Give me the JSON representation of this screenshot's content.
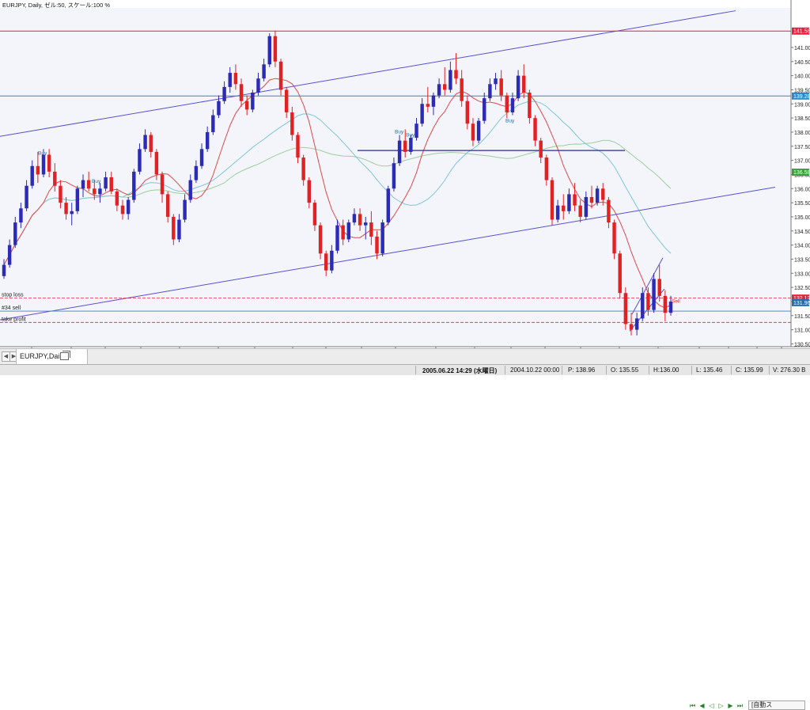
{
  "window": {
    "title": "EURJPY, Daily, ゼル:50, スケール:100 %"
  },
  "chart_data": {
    "type": "candlestick",
    "symbol": "EURJPY",
    "timeframe": "Daily",
    "ylim": [
      130.4,
      142.4
    ],
    "y_ticks": [
      "141.00",
      "140.50",
      "140.00",
      "139.50",
      "139.00",
      "138.50",
      "138.00",
      "137.50",
      "137.00",
      "136.50",
      "136.00",
      "135.50",
      "135.00",
      "134.50",
      "134.00",
      "133.50",
      "133.00",
      "132.50",
      "132.00",
      "131.50",
      "131.00",
      "130.50"
    ],
    "x_ticks": [
      "10",
      "18",
      "11",
      "16",
      "12",
      "17",
      "2005",
      "17",
      "2",
      "15",
      "3",
      "17",
      "4",
      "18",
      "5",
      "16",
      "6",
      "16",
      "7",
      "9",
      "17",
      "25"
    ],
    "price_lines": [
      {
        "label": "141.58",
        "value": 141.58,
        "color": "#e5223a"
      },
      {
        "label": "139.28",
        "value": 139.28,
        "color": "#2b88c9"
      },
      {
        "label": "136.58",
        "value": 136.58,
        "color": "#3a9f3a"
      },
      {
        "label": "132.12",
        "value": 132.12,
        "color": "#e5223a"
      },
      {
        "label": "131.96",
        "value": 131.96,
        "color": "#1e6fb3"
      }
    ],
    "horizontal_lines": [
      {
        "name": "stop loss",
        "value": 132.12,
        "style": "dashed",
        "color": "#e5223a"
      },
      {
        "name": "#34 sell",
        "value": 131.66,
        "style": "solid",
        "color": "#2b88c9"
      },
      {
        "name": "take profit",
        "value": 131.26,
        "style": "dashed",
        "color": "#e5223a"
      }
    ],
    "trade_labels": [
      "Buy",
      "Buy",
      "Buy",
      "Buy",
      "Buy",
      "Sell"
    ],
    "candles": [
      {
        "o": 132.9,
        "h": 133.5,
        "l": 132.8,
        "c": 133.3
      },
      {
        "o": 133.3,
        "h": 134.2,
        "l": 133.2,
        "c": 134.0
      },
      {
        "o": 134.0,
        "h": 135.0,
        "l": 133.9,
        "c": 134.8
      },
      {
        "o": 134.8,
        "h": 135.5,
        "l": 134.6,
        "c": 135.3
      },
      {
        "o": 135.3,
        "h": 136.3,
        "l": 135.2,
        "c": 136.1
      },
      {
        "o": 136.1,
        "h": 137.0,
        "l": 136.0,
        "c": 136.8
      },
      {
        "o": 136.8,
        "h": 137.3,
        "l": 136.2,
        "c": 136.5
      },
      {
        "o": 136.5,
        "h": 137.4,
        "l": 136.4,
        "c": 137.2
      },
      {
        "o": 137.2,
        "h": 137.4,
        "l": 136.4,
        "c": 136.6
      },
      {
        "o": 136.6,
        "h": 136.9,
        "l": 135.9,
        "c": 136.1
      },
      {
        "o": 136.1,
        "h": 136.3,
        "l": 135.3,
        "c": 135.5
      },
      {
        "o": 135.5,
        "h": 135.7,
        "l": 134.9,
        "c": 135.1
      },
      {
        "o": 135.1,
        "h": 135.5,
        "l": 134.7,
        "c": 135.2
      },
      {
        "o": 135.2,
        "h": 136.1,
        "l": 135.1,
        "c": 136.0
      },
      {
        "o": 136.0,
        "h": 136.5,
        "l": 135.7,
        "c": 136.3
      },
      {
        "o": 136.3,
        "h": 136.6,
        "l": 135.9,
        "c": 136.0
      },
      {
        "o": 136.0,
        "h": 136.3,
        "l": 135.6,
        "c": 135.8
      },
      {
        "o": 135.8,
        "h": 136.2,
        "l": 135.5,
        "c": 136.0
      },
      {
        "o": 136.0,
        "h": 136.6,
        "l": 135.9,
        "c": 136.4
      },
      {
        "o": 136.4,
        "h": 136.6,
        "l": 135.8,
        "c": 135.9
      },
      {
        "o": 135.9,
        "h": 136.0,
        "l": 135.2,
        "c": 135.4
      },
      {
        "o": 135.4,
        "h": 135.6,
        "l": 134.9,
        "c": 135.1
      },
      {
        "o": 135.1,
        "h": 135.7,
        "l": 134.9,
        "c": 135.6
      },
      {
        "o": 135.6,
        "h": 136.7,
        "l": 135.5,
        "c": 136.6
      },
      {
        "o": 136.6,
        "h": 137.6,
        "l": 136.5,
        "c": 137.4
      },
      {
        "o": 137.4,
        "h": 138.1,
        "l": 137.3,
        "c": 137.9
      },
      {
        "o": 137.9,
        "h": 138.0,
        "l": 137.1,
        "c": 137.3
      },
      {
        "o": 137.3,
        "h": 137.4,
        "l": 136.3,
        "c": 136.5
      },
      {
        "o": 136.5,
        "h": 136.6,
        "l": 135.5,
        "c": 135.8
      },
      {
        "o": 135.8,
        "h": 135.9,
        "l": 134.8,
        "c": 135.0
      },
      {
        "o": 135.0,
        "h": 135.1,
        "l": 134.0,
        "c": 134.2
      },
      {
        "o": 134.2,
        "h": 135.1,
        "l": 134.1,
        "c": 134.9
      },
      {
        "o": 134.9,
        "h": 135.8,
        "l": 134.8,
        "c": 135.6
      },
      {
        "o": 135.6,
        "h": 136.5,
        "l": 135.5,
        "c": 136.3
      },
      {
        "o": 136.3,
        "h": 137.0,
        "l": 136.2,
        "c": 136.8
      },
      {
        "o": 136.8,
        "h": 137.6,
        "l": 136.7,
        "c": 137.4
      },
      {
        "o": 137.4,
        "h": 138.2,
        "l": 137.3,
        "c": 138.0
      },
      {
        "o": 138.0,
        "h": 138.8,
        "l": 137.9,
        "c": 138.6
      },
      {
        "o": 138.6,
        "h": 139.3,
        "l": 138.5,
        "c": 139.1
      },
      {
        "o": 139.1,
        "h": 139.8,
        "l": 139.0,
        "c": 139.6
      },
      {
        "o": 139.6,
        "h": 140.3,
        "l": 139.4,
        "c": 140.1
      },
      {
        "o": 140.1,
        "h": 140.4,
        "l": 139.5,
        "c": 139.7
      },
      {
        "o": 139.7,
        "h": 139.9,
        "l": 138.9,
        "c": 139.1
      },
      {
        "o": 139.1,
        "h": 139.3,
        "l": 138.6,
        "c": 138.8
      },
      {
        "o": 138.8,
        "h": 139.5,
        "l": 138.7,
        "c": 139.4
      },
      {
        "o": 139.4,
        "h": 140.1,
        "l": 139.3,
        "c": 139.9
      },
      {
        "o": 139.9,
        "h": 140.6,
        "l": 139.8,
        "c": 140.4
      },
      {
        "o": 140.4,
        "h": 141.5,
        "l": 140.3,
        "c": 141.4
      },
      {
        "o": 141.4,
        "h": 141.6,
        "l": 140.3,
        "c": 140.5
      },
      {
        "o": 140.5,
        "h": 140.6,
        "l": 139.3,
        "c": 139.5
      },
      {
        "o": 139.5,
        "h": 139.6,
        "l": 138.5,
        "c": 138.7
      },
      {
        "o": 138.7,
        "h": 138.9,
        "l": 137.7,
        "c": 137.9
      },
      {
        "o": 137.9,
        "h": 138.0,
        "l": 136.9,
        "c": 137.1
      },
      {
        "o": 137.1,
        "h": 137.2,
        "l": 136.1,
        "c": 136.3
      },
      {
        "o": 136.3,
        "h": 136.4,
        "l": 135.3,
        "c": 135.5
      },
      {
        "o": 135.5,
        "h": 135.6,
        "l": 134.5,
        "c": 134.7
      },
      {
        "o": 134.7,
        "h": 134.8,
        "l": 133.5,
        "c": 133.7
      },
      {
        "o": 133.7,
        "h": 133.8,
        "l": 132.9,
        "c": 133.1
      },
      {
        "o": 133.1,
        "h": 134.0,
        "l": 133.0,
        "c": 133.8
      },
      {
        "o": 133.8,
        "h": 134.9,
        "l": 133.7,
        "c": 134.7
      },
      {
        "o": 134.7,
        "h": 134.9,
        "l": 134.0,
        "c": 134.2
      },
      {
        "o": 134.2,
        "h": 134.9,
        "l": 134.1,
        "c": 134.8
      },
      {
        "o": 134.8,
        "h": 135.3,
        "l": 134.7,
        "c": 135.1
      },
      {
        "o": 135.1,
        "h": 135.3,
        "l": 134.5,
        "c": 134.7
      },
      {
        "o": 134.7,
        "h": 135.0,
        "l": 134.2,
        "c": 134.8
      },
      {
        "o": 134.8,
        "h": 135.2,
        "l": 134.0,
        "c": 134.3
      },
      {
        "o": 134.3,
        "h": 134.5,
        "l": 133.5,
        "c": 133.7
      },
      {
        "o": 133.7,
        "h": 134.9,
        "l": 133.6,
        "c": 134.8
      },
      {
        "o": 134.8,
        "h": 136.1,
        "l": 134.7,
        "c": 136.0
      },
      {
        "o": 136.0,
        "h": 137.1,
        "l": 135.9,
        "c": 136.9
      },
      {
        "o": 136.9,
        "h": 137.9,
        "l": 136.8,
        "c": 137.7
      },
      {
        "o": 137.7,
        "h": 138.1,
        "l": 137.1,
        "c": 137.3
      },
      {
        "o": 137.3,
        "h": 137.9,
        "l": 137.2,
        "c": 137.8
      },
      {
        "o": 137.8,
        "h": 138.5,
        "l": 137.7,
        "c": 138.3
      },
      {
        "o": 138.3,
        "h": 139.2,
        "l": 138.2,
        "c": 139.0
      },
      {
        "o": 139.0,
        "h": 139.6,
        "l": 138.7,
        "c": 138.9
      },
      {
        "o": 138.9,
        "h": 139.4,
        "l": 138.6,
        "c": 139.3
      },
      {
        "o": 139.3,
        "h": 139.9,
        "l": 139.2,
        "c": 139.7
      },
      {
        "o": 139.7,
        "h": 140.3,
        "l": 139.3,
        "c": 139.5
      },
      {
        "o": 139.5,
        "h": 140.5,
        "l": 139.4,
        "c": 140.2
      },
      {
        "o": 140.2,
        "h": 140.8,
        "l": 139.7,
        "c": 139.9
      },
      {
        "o": 139.9,
        "h": 140.2,
        "l": 138.9,
        "c": 139.1
      },
      {
        "o": 139.1,
        "h": 139.3,
        "l": 138.1,
        "c": 138.3
      },
      {
        "o": 138.3,
        "h": 138.5,
        "l": 137.5,
        "c": 137.7
      },
      {
        "o": 137.7,
        "h": 138.5,
        "l": 137.6,
        "c": 138.4
      },
      {
        "o": 138.4,
        "h": 139.4,
        "l": 138.3,
        "c": 139.2
      },
      {
        "o": 139.2,
        "h": 139.9,
        "l": 139.1,
        "c": 139.7
      },
      {
        "o": 139.7,
        "h": 140.1,
        "l": 139.5,
        "c": 139.9
      },
      {
        "o": 139.9,
        "h": 140.2,
        "l": 139.1,
        "c": 139.3
      },
      {
        "o": 139.3,
        "h": 139.4,
        "l": 138.5,
        "c": 138.7
      },
      {
        "o": 138.7,
        "h": 139.4,
        "l": 138.6,
        "c": 139.2
      },
      {
        "o": 139.2,
        "h": 140.2,
        "l": 139.1,
        "c": 140.0
      },
      {
        "o": 140.0,
        "h": 140.4,
        "l": 139.2,
        "c": 139.4
      },
      {
        "o": 139.4,
        "h": 139.5,
        "l": 138.3,
        "c": 138.5
      },
      {
        "o": 138.5,
        "h": 138.6,
        "l": 137.5,
        "c": 137.7
      },
      {
        "o": 137.7,
        "h": 137.8,
        "l": 136.9,
        "c": 137.1
      },
      {
        "o": 137.1,
        "h": 137.2,
        "l": 136.1,
        "c": 136.3
      },
      {
        "o": 136.3,
        "h": 136.4,
        "l": 134.7,
        "c": 134.9
      },
      {
        "o": 134.9,
        "h": 135.6,
        "l": 134.8,
        "c": 135.4
      },
      {
        "o": 135.4,
        "h": 135.8,
        "l": 134.9,
        "c": 135.2
      },
      {
        "o": 135.2,
        "h": 136.0,
        "l": 135.1,
        "c": 135.8
      },
      {
        "o": 135.8,
        "h": 136.2,
        "l": 135.2,
        "c": 135.4
      },
      {
        "o": 135.4,
        "h": 135.6,
        "l": 134.8,
        "c": 135.0
      },
      {
        "o": 135.0,
        "h": 135.9,
        "l": 134.9,
        "c": 135.7
      },
      {
        "o": 135.7,
        "h": 136.1,
        "l": 135.3,
        "c": 135.5
      },
      {
        "o": 135.5,
        "h": 136.1,
        "l": 135.4,
        "c": 136.0
      },
      {
        "o": 136.0,
        "h": 136.2,
        "l": 135.4,
        "c": 135.6
      },
      {
        "o": 135.6,
        "h": 135.7,
        "l": 134.6,
        "c": 134.8
      },
      {
        "o": 134.8,
        "h": 134.9,
        "l": 133.5,
        "c": 133.7
      },
      {
        "o": 133.7,
        "h": 133.8,
        "l": 132.1,
        "c": 132.3
      },
      {
        "o": 132.3,
        "h": 132.5,
        "l": 131.0,
        "c": 131.2
      },
      {
        "o": 131.2,
        "h": 131.6,
        "l": 130.8,
        "c": 131.0
      },
      {
        "o": 131.0,
        "h": 131.6,
        "l": 130.8,
        "c": 131.4
      },
      {
        "o": 131.4,
        "h": 132.5,
        "l": 131.3,
        "c": 132.3
      },
      {
        "o": 132.3,
        "h": 132.5,
        "l": 131.5,
        "c": 131.7
      },
      {
        "o": 131.7,
        "h": 133.0,
        "l": 131.6,
        "c": 132.8
      },
      {
        "o": 132.8,
        "h": 133.3,
        "l": 132.0,
        "c": 132.2
      },
      {
        "o": 132.2,
        "h": 132.4,
        "l": 131.3,
        "c": 131.6
      },
      {
        "o": 131.6,
        "h": 132.2,
        "l": 131.5,
        "c": 132.0
      }
    ]
  },
  "tab_bar": {
    "tab_label": "EURJPY,Daily",
    "autoscroll_label": "[自動ス"
  },
  "status_bar": {
    "datetime": "2005.06.22 14:29 (水曜日)",
    "time_field": "2004.10.22 00:00",
    "price_p": "P: 138.96",
    "open": "O: 135.55",
    "high": "H:136.00",
    "low": "L: 135.46",
    "close": "C: 135.99",
    "volume": "V: 276.30 B"
  }
}
